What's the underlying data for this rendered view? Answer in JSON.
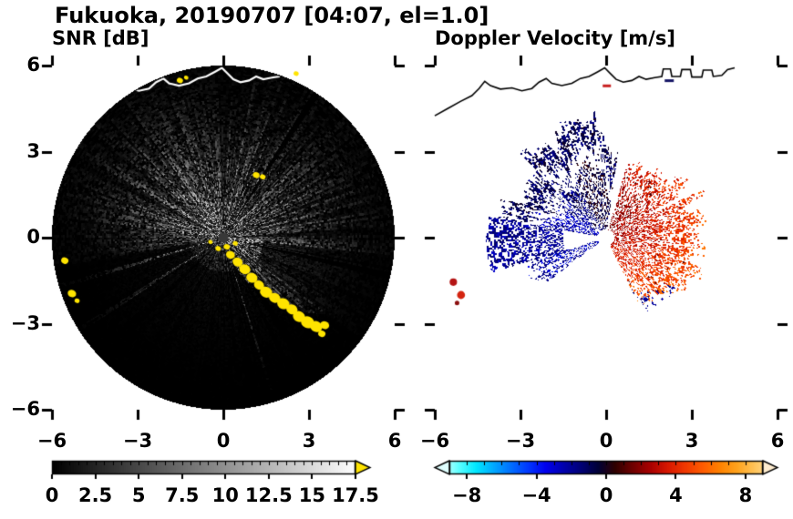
{
  "figure": {
    "title": "Fukuoka, 20190707 [04:07, el=1.0]",
    "background": "#ffffff",
    "text_color": "#000000"
  },
  "chart_data": [
    {
      "type": "radar_ppi",
      "panel": "left",
      "title": "SNR [dB]",
      "units": "dB",
      "xlim": [
        -6,
        6
      ],
      "ylim": [
        -6,
        6
      ],
      "xticks": {
        "values": [
          -6,
          -3,
          0,
          3,
          6
        ],
        "labels": [
          "−6",
          "−3",
          "0",
          "3",
          "6"
        ]
      },
      "yticks": {
        "values": [
          6,
          3,
          0,
          -3,
          -6
        ],
        "labels": [
          "6",
          "3",
          "0",
          "−3",
          "−6"
        ]
      },
      "colorbar": {
        "min": 0,
        "max": 17.5,
        "segment_step": 0.5,
        "tick_values": [
          0,
          2.5,
          5,
          7.5,
          10,
          12.5,
          15,
          17.5
        ],
        "tick_labels": [
          "0",
          "2.5",
          "5",
          "7.5",
          "10",
          "12.5",
          "15",
          "17.5"
        ],
        "colormap": "grayscale black to white",
        "over_arrow_color": "#ffe400"
      },
      "scene": {
        "background_disk": {
          "center": [
            0,
            0
          ],
          "radius_km": 6,
          "color": "#000000"
        },
        "radar_site_marker": {
          "x": 0,
          "y": 0,
          "color": "#383838"
        },
        "bright_fan_azimuth_deg": [
          75,
          190
        ],
        "east_haze_azimuth_deg": [
          -45,
          80
        ],
        "dark_blocked_rays_deg": [
          57,
          200,
          213,
          228,
          243,
          255,
          303,
          347
        ],
        "shadow_sector_sw_deg": [
          190,
          287
        ],
        "shadow_sector_se_deg": [
          288,
          354
        ],
        "clutter_color": "#ffe400",
        "clutter_blobs_xy_km": [
          [
            0.25,
            -0.6,
            0.16
          ],
          [
            0.5,
            -0.85,
            0.18
          ],
          [
            0.75,
            -1.1,
            0.2
          ],
          [
            1.0,
            -1.4,
            0.2
          ],
          [
            1.25,
            -1.65,
            0.18
          ],
          [
            1.5,
            -1.9,
            0.22
          ],
          [
            1.8,
            -2.1,
            0.2
          ],
          [
            2.1,
            -2.3,
            0.22
          ],
          [
            2.4,
            -2.5,
            0.2
          ],
          [
            2.65,
            -2.75,
            0.22
          ],
          [
            2.95,
            -2.95,
            0.24
          ],
          [
            3.25,
            -3.1,
            0.22
          ],
          [
            3.55,
            -3.05,
            0.16
          ],
          [
            3.45,
            -3.35,
            0.13
          ],
          [
            0.12,
            -0.32,
            0.11
          ],
          [
            -0.18,
            -0.38,
            0.1
          ],
          [
            0.42,
            -0.2,
            0.09
          ],
          [
            -0.45,
            -0.15,
            0.08
          ],
          [
            1.15,
            2.18,
            0.12
          ],
          [
            1.38,
            2.12,
            0.1
          ],
          [
            -5.55,
            -0.8,
            0.13
          ],
          [
            -5.3,
            -1.95,
            0.15
          ],
          [
            -5.12,
            -2.2,
            0.09
          ],
          [
            -1.52,
            5.48,
            0.11
          ],
          [
            -1.3,
            5.58,
            0.08
          ],
          [
            2.55,
            5.72,
            0.09
          ]
        ],
        "coastline_color": "#ffffff"
      }
    },
    {
      "type": "radar_ppi",
      "panel": "right",
      "title": "Doppler Velocity [m/s]",
      "units": "m/s",
      "xlim": [
        -6,
        6
      ],
      "ylim": [
        -6,
        6
      ],
      "xticks": {
        "values": [
          -6,
          -3,
          0,
          3,
          6
        ],
        "labels": [
          "−6",
          "−3",
          "0",
          "3",
          "6"
        ]
      },
      "yticks": {
        "values": [
          6,
          3,
          0,
          -3,
          -6
        ],
        "labels": [
          "6",
          "3",
          "0",
          "−3",
          "−6"
        ]
      },
      "colorbar": {
        "min": -9,
        "max": 9,
        "segment_step": 1,
        "tick_values": [
          -8,
          -4,
          0,
          4,
          8
        ],
        "tick_labels": [
          "−8",
          "−4",
          "0",
          "4",
          "8"
        ],
        "colormap": "cyan-blue-navy-darkred-orange",
        "under_arrow_color": "#e0ffff",
        "over_arrow_color": "#ffedd0",
        "stops": [
          [
            -9.5,
            "#e0ffff"
          ],
          [
            -8.5,
            "#60ffff"
          ],
          [
            -7.5,
            "#00e8ff"
          ],
          [
            -6.5,
            "#00aaff"
          ],
          [
            -5.5,
            "#0070ff"
          ],
          [
            -4.5,
            "#0038ff"
          ],
          [
            -3.5,
            "#0000ee"
          ],
          [
            -2.5,
            "#0000b0"
          ],
          [
            -1.5,
            "#000078"
          ],
          [
            -0.5,
            "#000038"
          ],
          [
            0.5,
            "#300000"
          ],
          [
            1.5,
            "#700000"
          ],
          [
            2.5,
            "#a80000"
          ],
          [
            3.5,
            "#d81800"
          ],
          [
            4.5,
            "#f03800"
          ],
          [
            5.5,
            "#ff5c00"
          ],
          [
            6.5,
            "#ff8200"
          ],
          [
            7.5,
            "#ffa41e"
          ],
          [
            8.5,
            "#ffc45a"
          ],
          [
            9.5,
            "#ffe2a0"
          ]
        ]
      },
      "scene": {
        "approaching_sector": {
          "azimuth_deg": [
            82,
            170
          ],
          "max_range_km": 4.8,
          "velocity_ms": [
            -5.5,
            -1.5
          ]
        },
        "approaching_wedge_sw": {
          "azimuth_deg": [
            197,
            217
          ],
          "max_range_km": 3.8,
          "velocity_ms": [
            -5,
            -1.8
          ]
        },
        "receding_sector": {
          "azimuth_deg": [
            -64,
            77
          ],
          "max_range_km": 4.6,
          "velocity_ms": [
            1.8,
            9
          ]
        },
        "isolated_red_echoes_xy_km": [
          [
            -5.35,
            -1.55
          ],
          [
            -5.08,
            -2.0
          ],
          [
            -5.22,
            -2.28
          ]
        ],
        "center_hole_color": "#ffffff",
        "coastline_color": "#000000"
      }
    }
  ],
  "coastline_xy_km": [
    [
      -6.0,
      4.25
    ],
    [
      -5.55,
      4.5
    ],
    [
      -5.1,
      4.75
    ],
    [
      -4.7,
      4.95
    ],
    [
      -4.45,
      5.2
    ],
    [
      -4.25,
      5.45
    ],
    [
      -4.05,
      5.3
    ],
    [
      -3.7,
      5.18
    ],
    [
      -3.3,
      5.22
    ],
    [
      -2.95,
      5.12
    ],
    [
      -2.6,
      5.2
    ],
    [
      -2.35,
      5.42
    ],
    [
      -2.1,
      5.55
    ],
    [
      -1.9,
      5.38
    ],
    [
      -1.55,
      5.3
    ],
    [
      -1.2,
      5.38
    ],
    [
      -0.9,
      5.55
    ],
    [
      -0.6,
      5.62
    ],
    [
      -0.3,
      5.78
    ],
    [
      -0.05,
      5.92
    ],
    [
      0.15,
      5.72
    ],
    [
      0.35,
      5.52
    ],
    [
      0.6,
      5.42
    ],
    [
      0.9,
      5.48
    ],
    [
      1.15,
      5.62
    ],
    [
      1.4,
      5.52
    ],
    [
      1.7,
      5.58
    ],
    [
      1.95,
      5.62
    ],
    [
      2.0,
      5.88
    ],
    [
      2.25,
      5.88
    ],
    [
      2.3,
      5.62
    ],
    [
      2.6,
      5.62
    ],
    [
      2.65,
      5.86
    ],
    [
      2.95,
      5.86
    ],
    [
      3.0,
      5.6
    ],
    [
      3.35,
      5.6
    ],
    [
      3.4,
      5.84
    ],
    [
      3.7,
      5.84
    ],
    [
      3.75,
      5.62
    ],
    [
      4.05,
      5.66
    ],
    [
      4.25,
      5.86
    ],
    [
      4.5,
      5.92
    ]
  ],
  "colors": {
    "ticks": "#000000"
  }
}
